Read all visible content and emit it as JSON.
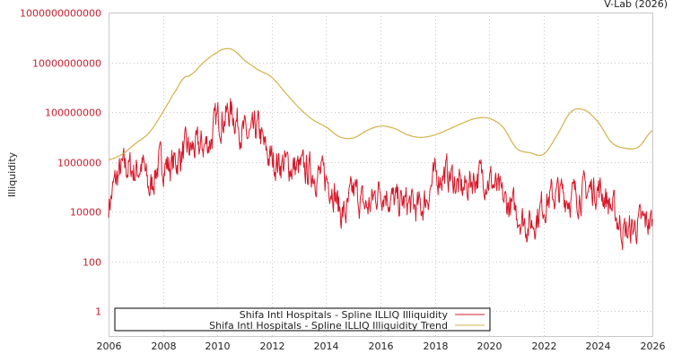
{
  "credit": "V-Lab (2026)",
  "colors": {
    "series_illiquidity": "#d7192a",
    "series_trend": "#d4b04a",
    "y_tick_labels": "#c8202f",
    "x_tick_labels": "#222222",
    "grid": "#c8c8c8",
    "axis": "#c8c8c8"
  },
  "chart_data": {
    "type": "line",
    "title": "",
    "xlabel": "",
    "ylabel": "Illiquidity",
    "yscale": "log",
    "xlim": [
      2006,
      2026
    ],
    "ylim": [
      0.3,
      1000000000000
    ],
    "grid": true,
    "legend_position": "bottom-left inside",
    "x_ticks": [
      "2006",
      "2008",
      "2010",
      "2012",
      "2014",
      "2016",
      "2018",
      "2020",
      "2022",
      "2024",
      "2026"
    ],
    "y_ticks": [
      "1000000000000",
      "10000000000",
      "100000000",
      "1000000",
      "10000",
      "100",
      "1"
    ],
    "legend": [
      "Shifa Intl Hospitals - Spline ILLIQ Illiquidity",
      "Shifa Intl Hospitals - Spline ILLIQ Illiquidity Trend"
    ],
    "series": [
      {
        "name": "Shifa Intl Hospitals - Spline ILLIQ Illiquidity Trend",
        "x": [
          2006.0,
          2006.5,
          2007.0,
          2007.5,
          2008.0,
          2008.5,
          2008.8,
          2009.0,
          2009.5,
          2010.0,
          2010.3,
          2010.6,
          2011.0,
          2011.5,
          2012.0,
          2012.5,
          2013.0,
          2013.5,
          2014.0,
          2014.5,
          2015.0,
          2015.5,
          2016.0,
          2016.5,
          2017.0,
          2017.5,
          2018.0,
          2018.5,
          2019.0,
          2019.5,
          2020.0,
          2020.5,
          2021.0,
          2021.5,
          2022.0,
          2022.5,
          2023.0,
          2023.5,
          2024.0,
          2024.5,
          2025.0,
          2025.5,
          2026.0
        ],
        "values": [
          1200000,
          2000000,
          5500000,
          15000000,
          100000000,
          800000000,
          2500000000,
          3000000000,
          10000000000,
          25000000000,
          35000000000,
          30000000000,
          12000000000,
          5000000000,
          2500000000,
          600000000,
          150000000,
          50000000,
          25000000,
          10000000,
          9000000,
          18000000,
          27000000,
          22000000,
          12000000,
          9500000,
          12000000,
          20000000,
          35000000,
          55000000,
          55000000,
          25000000,
          3500000,
          2300000,
          2000000,
          12000000,
          100000000,
          120000000,
          40000000,
          6000000,
          3500000,
          4000000,
          18000000
        ]
      },
      {
        "name": "Shifa Intl Hospitals - Spline ILLIQ Illiquidity",
        "x": [
          2006.0,
          2006.25,
          2006.5,
          2006.75,
          2007.0,
          2007.25,
          2007.5,
          2007.75,
          2008.0,
          2008.25,
          2008.5,
          2008.75,
          2009.0,
          2009.25,
          2009.5,
          2009.75,
          2010.0,
          2010.25,
          2010.5,
          2010.75,
          2011.0,
          2011.25,
          2011.5,
          2011.75,
          2012.0,
          2012.5,
          2013.0,
          2013.5,
          2014.0,
          2014.25,
          2014.5,
          2014.75,
          2015.0,
          2015.5,
          2016.0,
          2016.5,
          2017.0,
          2017.5,
          2018.0,
          2018.5,
          2019.0,
          2019.5,
          2020.0,
          2020.5,
          2021.0,
          2021.5,
          2022.0,
          2022.5,
          2023.0,
          2023.5,
          2024.0,
          2024.5,
          2025.0,
          2025.5,
          2026.0
        ],
        "values": [
          20000,
          150000,
          500000,
          600000,
          400000,
          700000,
          80000,
          500000,
          900000,
          700000,
          1100000,
          2500000,
          3000000,
          3500000,
          4500000,
          8000000,
          50000000,
          60000000,
          100000000,
          40000000,
          12000000,
          10000000,
          20000000,
          3000000,
          1200000,
          800000,
          500000,
          400000,
          200000,
          100000,
          12000,
          9000,
          60000,
          15000,
          80000,
          25000,
          20000,
          15000,
          200000,
          300000,
          80000,
          250000,
          200000,
          30000,
          10000,
          3000,
          20000,
          50000,
          40000,
          60000,
          80000,
          15000,
          1500,
          3000,
          4000
        ]
      }
    ]
  }
}
